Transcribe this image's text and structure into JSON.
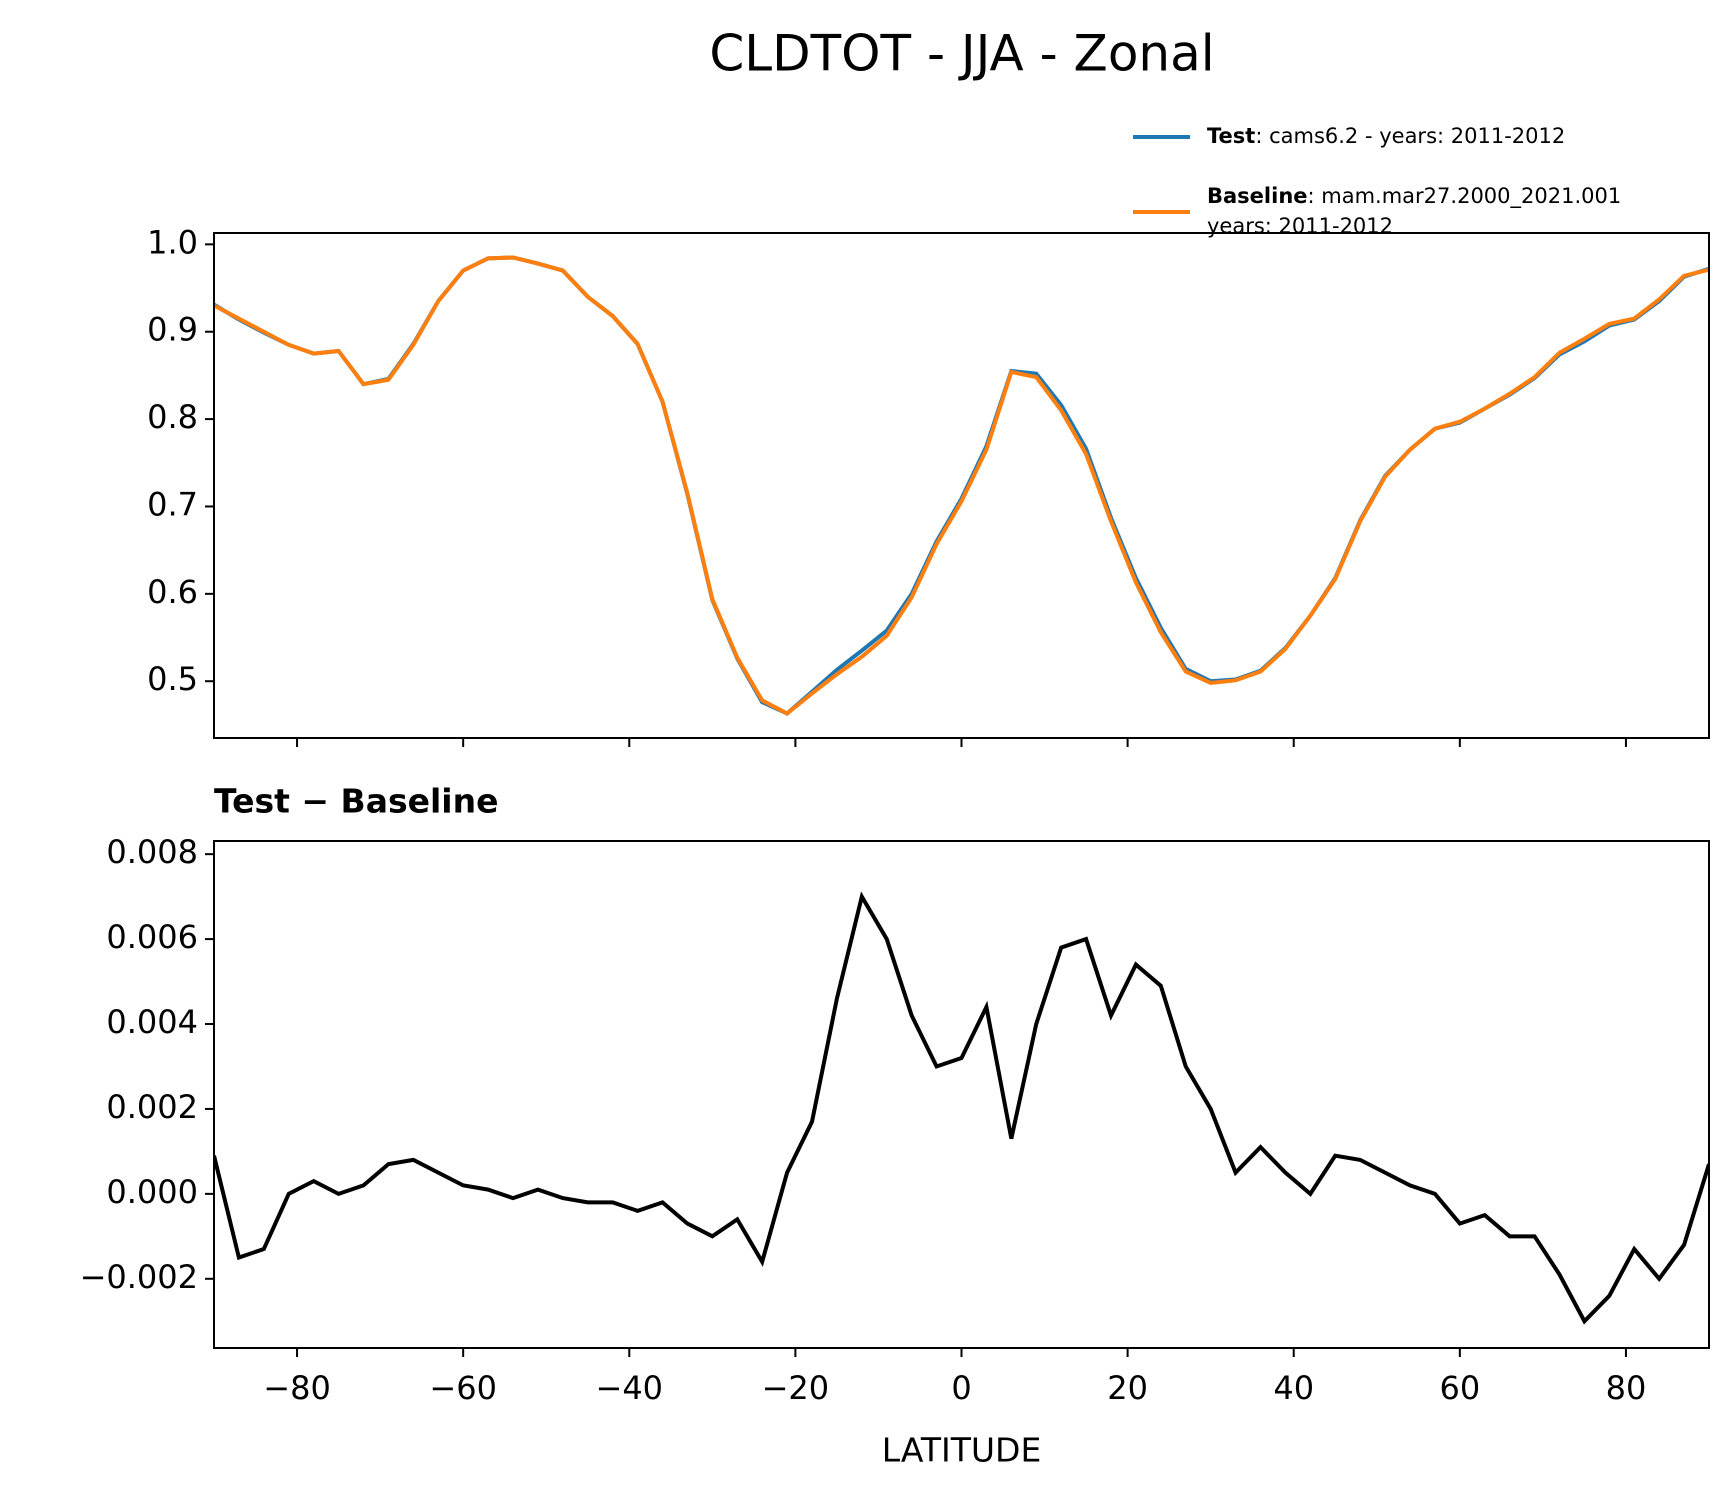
{
  "chart_data": [
    {
      "type": "line",
      "title": "CLDTOT - JJA - Zonal",
      "x": [
        -90,
        -87,
        -84,
        -81,
        -78,
        -75,
        -72,
        -69,
        -66,
        -63,
        -60,
        -57,
        -54,
        -51,
        -48,
        -45,
        -42,
        -39,
        -36,
        -33,
        -30,
        -27,
        -24,
        -21,
        -18,
        -15,
        -12,
        -9,
        -6,
        -3,
        0,
        3,
        6,
        9,
        12,
        15,
        18,
        21,
        24,
        27,
        30,
        33,
        36,
        39,
        42,
        45,
        48,
        51,
        54,
        57,
        60,
        63,
        66,
        69,
        72,
        75,
        78,
        81,
        84,
        87,
        90
      ],
      "series": [
        {
          "name": "Test",
          "legend_text": [
            ": cams6.2 - years: 2011-2012"
          ],
          "color": "#1f77b4",
          "values": [
            0.931,
            0.914,
            0.899,
            0.885,
            0.875,
            0.878,
            0.84,
            0.846,
            0.886,
            0.935,
            0.97,
            0.984,
            0.985,
            0.978,
            0.97,
            0.94,
            0.918,
            0.886,
            0.82,
            0.714,
            0.593,
            0.526,
            0.476,
            0.463,
            0.488,
            0.513,
            0.535,
            0.558,
            0.6,
            0.66,
            0.709,
            0.769,
            0.855,
            0.852,
            0.816,
            0.766,
            0.687,
            0.618,
            0.561,
            0.514,
            0.5,
            0.502,
            0.512,
            0.538,
            0.575,
            0.618,
            0.684,
            0.735,
            0.765,
            0.789,
            0.796,
            0.812,
            0.828,
            0.847,
            0.874,
            0.889,
            0.907,
            0.914,
            0.935,
            0.963,
            0.972
          ]
        },
        {
          "name": "Baseline",
          "legend_text": [
            ": mam.mar27.2000_2021.001",
            "years: 2011-2012"
          ],
          "color": "#ff7f0e",
          "values": [
            0.93,
            0.915,
            0.9,
            0.885,
            0.875,
            0.878,
            0.84,
            0.845,
            0.885,
            0.935,
            0.97,
            0.984,
            0.985,
            0.978,
            0.97,
            0.94,
            0.918,
            0.886,
            0.82,
            0.715,
            0.594,
            0.527,
            0.478,
            0.463,
            0.486,
            0.508,
            0.528,
            0.552,
            0.596,
            0.657,
            0.706,
            0.765,
            0.854,
            0.848,
            0.81,
            0.76,
            0.683,
            0.613,
            0.556,
            0.511,
            0.498,
            0.501,
            0.511,
            0.537,
            0.575,
            0.617,
            0.683,
            0.734,
            0.765,
            0.789,
            0.797,
            0.812,
            0.829,
            0.848,
            0.876,
            0.892,
            0.909,
            0.915,
            0.937,
            0.964,
            0.971
          ]
        }
      ],
      "xlim": [
        -90,
        90
      ],
      "xticks": [
        -80,
        -60,
        -40,
        -20,
        0,
        20,
        40,
        60,
        80
      ],
      "ylim": [
        0.435,
        1.013
      ],
      "yticks": [
        0.5,
        0.6,
        0.7,
        0.8,
        0.9,
        {
          "value": 1,
          "label": "1.0"
        }
      ]
    },
    {
      "type": "line",
      "title": "Test − Baseline",
      "xlabel": "LATITUDE",
      "x": [
        -90,
        -87,
        -84,
        -81,
        -78,
        -75,
        -72,
        -69,
        -66,
        -63,
        -60,
        -57,
        -54,
        -51,
        -48,
        -45,
        -42,
        -39,
        -36,
        -33,
        -30,
        -27,
        -24,
        -21,
        -18,
        -15,
        -12,
        -9,
        -6,
        -3,
        0,
        3,
        6,
        9,
        12,
        15,
        18,
        21,
        24,
        27,
        30,
        33,
        36,
        39,
        42,
        45,
        48,
        51,
        54,
        57,
        60,
        63,
        66,
        69,
        72,
        75,
        78,
        81,
        84,
        87,
        90
      ],
      "series": [
        {
          "color": "#000000",
          "values": [
            0.0009,
            -0.0015,
            -0.0013,
            0.0,
            0.0003,
            0.0,
            0.0002,
            0.0007,
            0.0008,
            0.0005,
            0.0002,
            0.0001,
            -0.0001,
            0.0001,
            -0.0001,
            -0.0002,
            -0.0002,
            -0.0004,
            -0.0002,
            -0.0007,
            -0.001,
            -0.0006,
            -0.0016,
            0.0005,
            0.0017,
            0.0046,
            0.007,
            0.006,
            0.0042,
            0.003,
            0.0032,
            0.0044,
            0.0013,
            0.004,
            0.0058,
            0.006,
            0.0042,
            0.0054,
            0.0049,
            0.003,
            0.002,
            0.0005,
            0.0011,
            0.0005,
            0.0,
            0.0009,
            0.0008,
            0.0005,
            0.0002,
            0.0,
            -0.0007,
            -0.0005,
            -0.001,
            -0.001,
            -0.0019,
            -0.003,
            -0.0024,
            -0.0013,
            -0.002,
            -0.0012,
            0.0007
          ]
        }
      ],
      "xlim": [
        -90,
        90
      ],
      "xticks": [
        {
          "value": -80,
          "label": "−80"
        },
        {
          "value": -60,
          "label": "−60"
        },
        {
          "value": -40,
          "label": "−40"
        },
        {
          "value": -20,
          "label": "−20"
        },
        0,
        20,
        40,
        60,
        80
      ],
      "ylim": [
        -0.00363,
        0.00831
      ],
      "yticks": [
        {
          "value": -0.002,
          "label": "−0.002"
        },
        {
          "value": 0,
          "label": "0.000"
        },
        {
          "value": 0.002,
          "label": "0.002"
        },
        {
          "value": 0.004,
          "label": "0.004"
        },
        {
          "value": 0.006,
          "label": "0.006"
        },
        {
          "value": 0.008,
          "label": "0.008"
        }
      ]
    }
  ]
}
